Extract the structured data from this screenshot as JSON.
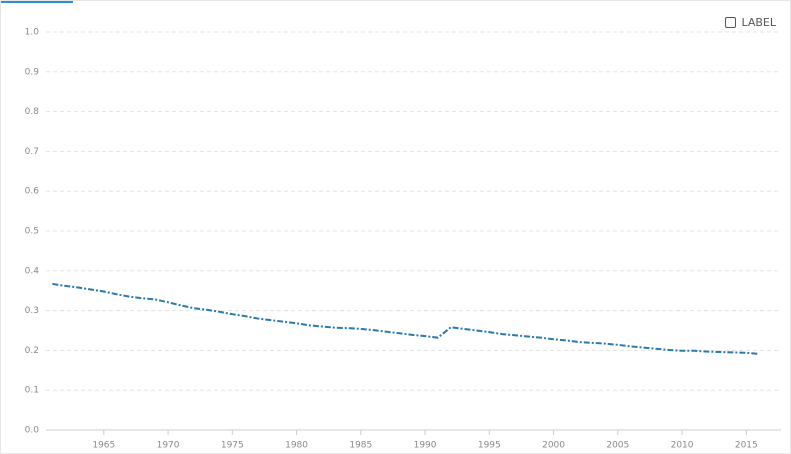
{
  "chart_data": {
    "type": "line",
    "x": [
      1961,
      1962,
      1963,
      1964,
      1965,
      1966,
      1967,
      1968,
      1969,
      1970,
      1971,
      1972,
      1973,
      1974,
      1975,
      1976,
      1977,
      1978,
      1979,
      1980,
      1981,
      1982,
      1983,
      1984,
      1985,
      1986,
      1987,
      1988,
      1989,
      1990,
      1991,
      1992,
      1993,
      1994,
      1995,
      1996,
      1997,
      1998,
      1999,
      2000,
      2001,
      2002,
      2003,
      2004,
      2005,
      2006,
      2007,
      2008,
      2009,
      2010,
      2011,
      2012,
      2013,
      2014,
      2015,
      2016
    ],
    "series": [
      {
        "name": "LABEL",
        "color": "#2a7ab0",
        "values": [
          0.367,
          0.362,
          0.358,
          0.353,
          0.348,
          0.341,
          0.335,
          0.331,
          0.328,
          0.321,
          0.313,
          0.306,
          0.302,
          0.297,
          0.291,
          0.286,
          0.28,
          0.276,
          0.272,
          0.268,
          0.263,
          0.26,
          0.257,
          0.256,
          0.254,
          0.251,
          0.247,
          0.243,
          0.239,
          0.236,
          0.232,
          0.258,
          0.254,
          0.25,
          0.246,
          0.241,
          0.238,
          0.235,
          0.232,
          0.228,
          0.225,
          0.221,
          0.219,
          0.217,
          0.214,
          0.21,
          0.207,
          0.204,
          0.201,
          0.199,
          0.199,
          0.197,
          0.196,
          0.195,
          0.194,
          0.191
        ]
      }
    ],
    "xlim": [
      1960.5,
      2017.7
    ],
    "xticks": [
      1965,
      1970,
      1975,
      1980,
      1985,
      1990,
      1995,
      2000,
      2005,
      2010,
      2015
    ],
    "ylim": [
      0,
      1
    ],
    "yticks": [
      {
        "value": 0,
        "label": "0.0"
      },
      0.1,
      0.2,
      0.3,
      0.4,
      0.5,
      0.6,
      0.7,
      0.8,
      0.9,
      {
        "value": 1,
        "label": "1.0"
      }
    ],
    "grid": true,
    "legend": "top-right"
  }
}
